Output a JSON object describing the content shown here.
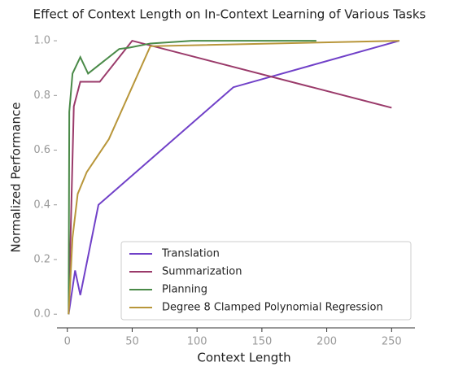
{
  "chart_data": {
    "type": "line",
    "title": "Effect of Context Length on In-Context Learning of Various Tasks",
    "x_label": "Context Length",
    "y_label": "Normalized Performance",
    "xlim": [
      -8,
      268
    ],
    "xticks": [
      0,
      50,
      100,
      150,
      200,
      250
    ],
    "ylim": [
      -0.05,
      1.03
    ],
    "yticks": [
      {
        "value": 0,
        "label": "0.0"
      },
      {
        "value": 0.2,
        "label": "0.2"
      },
      {
        "value": 0.4,
        "label": "0.4"
      },
      {
        "value": 0.6,
        "label": "0.6"
      },
      {
        "value": 0.8,
        "label": "0.8"
      },
      {
        "value": 1,
        "label": "1.0"
      }
    ],
    "grid": false,
    "legend": "lower right",
    "series": [
      {
        "name": "Translation",
        "color": "#7040c8",
        "x": [
          1,
          6,
          10,
          24,
          128,
          256
        ],
        "values": [
          0.0,
          0.16,
          0.07,
          0.4,
          0.83,
          1.0
        ]
      },
      {
        "name": "Summarization",
        "color": "#9a3a6a",
        "x": [
          1,
          5,
          10,
          25,
          50,
          250
        ],
        "values": [
          0.0,
          0.76,
          0.85,
          0.85,
          1.0,
          0.755
        ]
      },
      {
        "name": "Planning",
        "color": "#4a8a48",
        "x": [
          1,
          1.5,
          4,
          10,
          16,
          40,
          48,
          64,
          96,
          192
        ],
        "values": [
          0.0,
          0.74,
          0.88,
          0.94,
          0.88,
          0.97,
          0.975,
          0.99,
          1.0,
          1.0
        ]
      },
      {
        "name": "Degree 8 Clamped Polynomial Regression",
        "color": "#b8963a",
        "x": [
          1,
          4,
          8,
          15,
          32,
          64,
          256
        ],
        "values": [
          0.0,
          0.28,
          0.44,
          0.52,
          0.64,
          0.98,
          1.0
        ]
      }
    ]
  }
}
